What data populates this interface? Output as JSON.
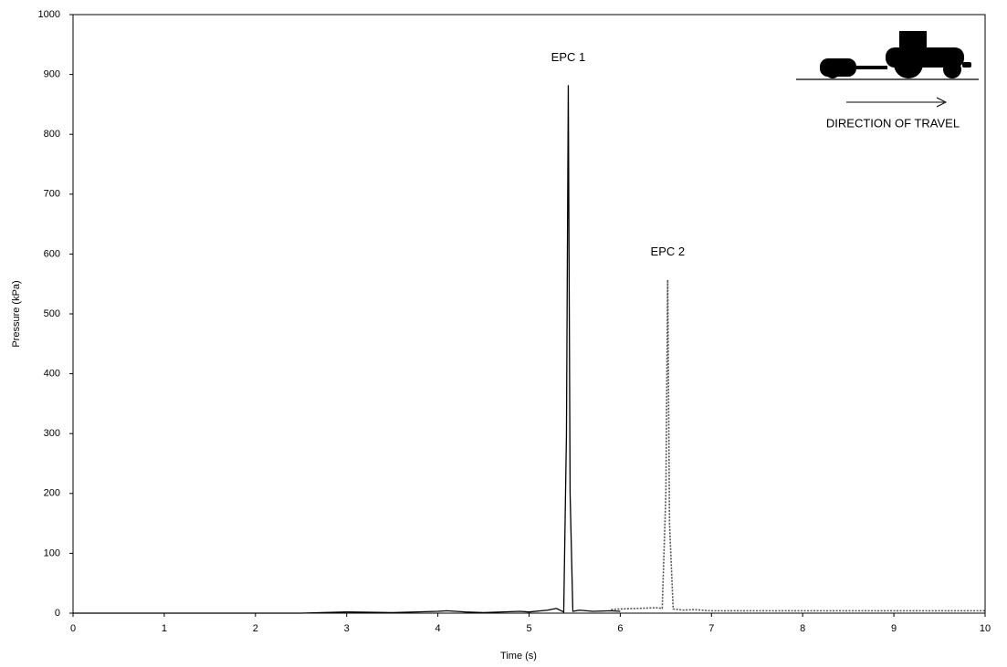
{
  "chart_data": {
    "type": "line",
    "xlabel": "Time (s)",
    "ylabel": "Pressure (kPa)",
    "xlim": [
      0,
      10
    ],
    "xticks": [
      0,
      1,
      2,
      3,
      4,
      5,
      6,
      7,
      8,
      9,
      10
    ],
    "ylim": [
      0,
      1000
    ],
    "yticks": [
      0,
      100,
      200,
      300,
      400,
      500,
      600,
      700,
      800,
      900,
      1000
    ],
    "grid": false,
    "annotations": [
      "DIRECTION OF TRAVEL"
    ],
    "series": [
      {
        "name": "EPC 1",
        "color": "#000000",
        "dash": "solid",
        "x": [
          0,
          0.5,
          1,
          1.5,
          2,
          2.5,
          3,
          3.5,
          4,
          4.1,
          4.3,
          4.5,
          4.9,
          5.0,
          5.2,
          5.3,
          5.38,
          5.41,
          5.43,
          5.45,
          5.48,
          5.55,
          5.7,
          5.9,
          6.0
        ],
        "values": [
          0,
          0,
          0,
          0,
          0,
          0,
          2,
          1,
          3,
          4,
          2,
          1,
          3,
          2,
          5,
          8,
          2,
          300,
          882,
          200,
          3,
          5,
          3,
          4,
          3
        ]
      },
      {
        "name": "EPC 2",
        "color": "#555555",
        "dash": "dotted",
        "x": [
          5.9,
          6.0,
          6.2,
          6.4,
          6.46,
          6.5,
          6.52,
          6.54,
          6.58,
          6.7,
          6.8,
          7,
          8,
          9,
          10
        ],
        "values": [
          6,
          7,
          8,
          9,
          8,
          200,
          557,
          150,
          7,
          5,
          6,
          4,
          4,
          4,
          4
        ]
      }
    ]
  }
}
